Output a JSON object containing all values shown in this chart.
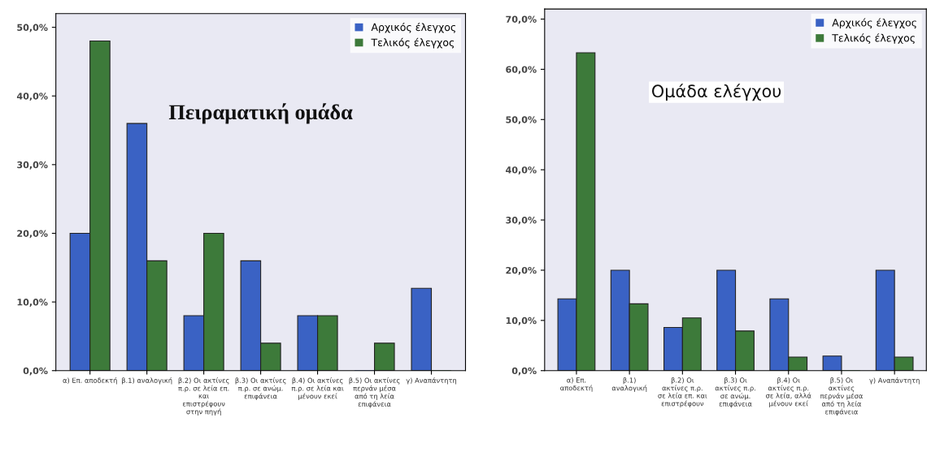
{
  "chart_data": [
    {
      "type": "bar",
      "title": "Πειραματική ομάδα",
      "categories": [
        "α) Επ. αποδεκτή",
        "β.1) αναλογική",
        "β.2) Οι ακτίνες π.ρ. σε λεία επ. και επιστρέφουν στην πηγή",
        "β.3) Οι ακτίνες π.ρ. σε ανώμ. επιφάνεια",
        "β.4) Οι ακτίνες π.ρ. σε λεία και μένουν εκεί",
        "β.5) Οι ακτίνες περνάν μέσα από τη λεία επιφάνεια",
        "γ) Αναπάντητη"
      ],
      "series": [
        {
          "name": "Αρχικός έλεγχος",
          "color": "#3a62c4",
          "values": [
            20,
            36,
            8,
            16,
            8,
            0,
            12
          ]
        },
        {
          "name": "Τελικός έλεγχος",
          "color": "#3d7a3a",
          "values": [
            48,
            16,
            20,
            4,
            8,
            4,
            0
          ]
        }
      ],
      "ylim": [
        0,
        52
      ],
      "yticks": [
        {
          "value": 0,
          "label": "0,0%"
        },
        {
          "value": 10,
          "label": "10,0%"
        },
        {
          "value": 20,
          "label": "20,0%"
        },
        {
          "value": 30,
          "label": "30,0%"
        },
        {
          "value": 40,
          "label": "40,0%"
        },
        {
          "value": 50,
          "label": "50,0%"
        }
      ],
      "legend": "top right",
      "grid": false
    },
    {
      "type": "bar",
      "title": "Ομάδα ελέγχου",
      "categories": [
        "α) Επ. αποδεκτή",
        "β.1) αναλογική",
        "β.2) Οι ακτίνες π.ρ. σε λεία επ. και επιστρέφουν",
        "β.3) Οι ακτίνες π.ρ. σε ανώμ. επιφάνεια",
        "β.4) Οι ακτίνες π.ρ. σε λεία, αλλά μένουν εκεί",
        "β.5) Οι ακτίνες περνάν μέσα από τη λεία επιφάνεια",
        "γ) Αναπάντητη"
      ],
      "series": [
        {
          "name": "Αρχικός έλεγχος",
          "color": "#3a62c4",
          "values": [
            14.3,
            20,
            8.6,
            20,
            14.3,
            2.9,
            20
          ]
        },
        {
          "name": "Τελικός έλεγχος",
          "color": "#3d7a3a",
          "values": [
            63.3,
            13.3,
            10.5,
            7.9,
            2.7,
            0,
            2.7
          ]
        }
      ],
      "ylim": [
        0,
        72
      ],
      "yticks": [
        {
          "value": 0,
          "label": "0,0%"
        },
        {
          "value": 10,
          "label": "10,0%"
        },
        {
          "value": 20,
          "label": "20,0%"
        },
        {
          "value": 30,
          "label": "30,0%"
        },
        {
          "value": 40,
          "label": "40,0%"
        },
        {
          "value": 50,
          "label": "50,0%"
        },
        {
          "value": 60,
          "label": "60,0%"
        },
        {
          "value": 70,
          "label": "70,0%"
        }
      ],
      "legend": "top right",
      "grid": false
    }
  ]
}
